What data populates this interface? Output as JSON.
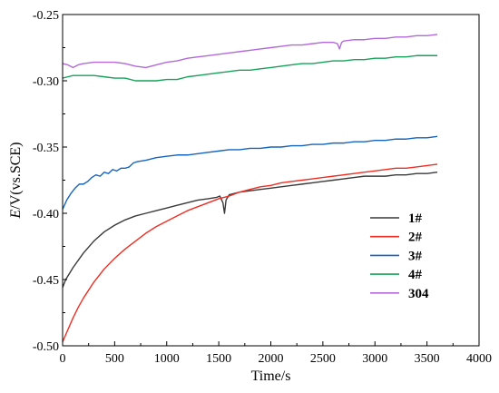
{
  "chart_data": {
    "type": "line",
    "title": "",
    "xlabel": "Time/s",
    "ylabel_italic": "E",
    "ylabel_rest": "/V(vs.SCE)",
    "xlim": [
      0,
      4000
    ],
    "ylim": [
      -0.5,
      -0.25
    ],
    "x_ticks": [
      0,
      500,
      1000,
      1500,
      2000,
      2500,
      3000,
      3500,
      4000
    ],
    "y_ticks": [
      -0.5,
      -0.45,
      -0.4,
      -0.35,
      -0.3,
      -0.25
    ],
    "y_tick_labels": [
      "-0.50",
      "-0.45",
      "-0.40",
      "-0.35",
      "-0.30",
      "-0.25"
    ],
    "grid": false,
    "legend_position": "lower-right",
    "series": [
      {
        "name": "1#",
        "color": "#3a3a3a",
        "points": [
          [
            0,
            -0.456
          ],
          [
            30,
            -0.45
          ],
          [
            100,
            -0.441
          ],
          [
            200,
            -0.43
          ],
          [
            300,
            -0.421
          ],
          [
            400,
            -0.414
          ],
          [
            500,
            -0.409
          ],
          [
            600,
            -0.405
          ],
          [
            700,
            -0.402
          ],
          [
            800,
            -0.4
          ],
          [
            900,
            -0.398
          ],
          [
            1000,
            -0.396
          ],
          [
            1100,
            -0.394
          ],
          [
            1200,
            -0.392
          ],
          [
            1300,
            -0.39
          ],
          [
            1400,
            -0.389
          ],
          [
            1480,
            -0.388
          ],
          [
            1510,
            -0.387
          ],
          [
            1540,
            -0.392
          ],
          [
            1555,
            -0.4
          ],
          [
            1570,
            -0.39
          ],
          [
            1600,
            -0.386
          ],
          [
            1700,
            -0.384
          ],
          [
            1800,
            -0.383
          ],
          [
            1900,
            -0.382
          ],
          [
            2000,
            -0.381
          ],
          [
            2100,
            -0.38
          ],
          [
            2200,
            -0.379
          ],
          [
            2300,
            -0.378
          ],
          [
            2400,
            -0.377
          ],
          [
            2500,
            -0.376
          ],
          [
            2600,
            -0.375
          ],
          [
            2700,
            -0.374
          ],
          [
            2800,
            -0.373
          ],
          [
            2900,
            -0.372
          ],
          [
            3000,
            -0.372
          ],
          [
            3100,
            -0.372
          ],
          [
            3200,
            -0.371
          ],
          [
            3300,
            -0.371
          ],
          [
            3400,
            -0.37
          ],
          [
            3500,
            -0.37
          ],
          [
            3600,
            -0.369
          ]
        ]
      },
      {
        "name": "2#",
        "color": "#ee2e24",
        "points": [
          [
            0,
            -0.497
          ],
          [
            50,
            -0.488
          ],
          [
            100,
            -0.479
          ],
          [
            150,
            -0.471
          ],
          [
            200,
            -0.464
          ],
          [
            300,
            -0.452
          ],
          [
            400,
            -0.442
          ],
          [
            500,
            -0.434
          ],
          [
            600,
            -0.427
          ],
          [
            700,
            -0.421
          ],
          [
            800,
            -0.415
          ],
          [
            900,
            -0.41
          ],
          [
            1000,
            -0.406
          ],
          [
            1100,
            -0.402
          ],
          [
            1200,
            -0.398
          ],
          [
            1300,
            -0.395
          ],
          [
            1400,
            -0.392
          ],
          [
            1500,
            -0.389
          ],
          [
            1600,
            -0.387
          ],
          [
            1700,
            -0.384
          ],
          [
            1800,
            -0.382
          ],
          [
            1900,
            -0.38
          ],
          [
            2000,
            -0.379
          ],
          [
            2100,
            -0.377
          ],
          [
            2200,
            -0.376
          ],
          [
            2300,
            -0.375
          ],
          [
            2400,
            -0.374
          ],
          [
            2500,
            -0.373
          ],
          [
            2600,
            -0.372
          ],
          [
            2700,
            -0.371
          ],
          [
            2800,
            -0.37
          ],
          [
            2900,
            -0.369
          ],
          [
            3000,
            -0.368
          ],
          [
            3100,
            -0.367
          ],
          [
            3200,
            -0.366
          ],
          [
            3300,
            -0.366
          ],
          [
            3400,
            -0.365
          ],
          [
            3500,
            -0.364
          ],
          [
            3600,
            -0.363
          ]
        ]
      },
      {
        "name": "3#",
        "color": "#1565c0",
        "points": [
          [
            0,
            -0.397
          ],
          [
            40,
            -0.39
          ],
          [
            80,
            -0.385
          ],
          [
            120,
            -0.381
          ],
          [
            160,
            -0.378
          ],
          [
            200,
            -0.378
          ],
          [
            240,
            -0.376
          ],
          [
            280,
            -0.373
          ],
          [
            320,
            -0.371
          ],
          [
            360,
            -0.372
          ],
          [
            400,
            -0.369
          ],
          [
            440,
            -0.37
          ],
          [
            480,
            -0.367
          ],
          [
            520,
            -0.368
          ],
          [
            560,
            -0.366
          ],
          [
            600,
            -0.366
          ],
          [
            640,
            -0.365
          ],
          [
            680,
            -0.362
          ],
          [
            720,
            -0.361
          ],
          [
            800,
            -0.36
          ],
          [
            900,
            -0.358
          ],
          [
            1000,
            -0.357
          ],
          [
            1100,
            -0.356
          ],
          [
            1200,
            -0.356
          ],
          [
            1300,
            -0.355
          ],
          [
            1400,
            -0.354
          ],
          [
            1500,
            -0.353
          ],
          [
            1600,
            -0.352
          ],
          [
            1700,
            -0.352
          ],
          [
            1800,
            -0.351
          ],
          [
            1900,
            -0.351
          ],
          [
            2000,
            -0.35
          ],
          [
            2100,
            -0.35
          ],
          [
            2200,
            -0.349
          ],
          [
            2300,
            -0.349
          ],
          [
            2400,
            -0.348
          ],
          [
            2500,
            -0.348
          ],
          [
            2600,
            -0.347
          ],
          [
            2700,
            -0.347
          ],
          [
            2800,
            -0.346
          ],
          [
            2900,
            -0.346
          ],
          [
            3000,
            -0.345
          ],
          [
            3100,
            -0.345
          ],
          [
            3200,
            -0.344
          ],
          [
            3300,
            -0.344
          ],
          [
            3400,
            -0.343
          ],
          [
            3500,
            -0.343
          ],
          [
            3600,
            -0.342
          ]
        ]
      },
      {
        "name": "4#",
        "color": "#17a15a",
        "points": [
          [
            0,
            -0.298
          ],
          [
            50,
            -0.297
          ],
          [
            100,
            -0.296
          ],
          [
            200,
            -0.296
          ],
          [
            300,
            -0.296
          ],
          [
            400,
            -0.297
          ],
          [
            500,
            -0.298
          ],
          [
            600,
            -0.298
          ],
          [
            700,
            -0.3
          ],
          [
            800,
            -0.3
          ],
          [
            900,
            -0.3
          ],
          [
            1000,
            -0.299
          ],
          [
            1100,
            -0.299
          ],
          [
            1200,
            -0.297
          ],
          [
            1300,
            -0.296
          ],
          [
            1400,
            -0.295
          ],
          [
            1500,
            -0.294
          ],
          [
            1600,
            -0.293
          ],
          [
            1700,
            -0.292
          ],
          [
            1800,
            -0.292
          ],
          [
            1900,
            -0.291
          ],
          [
            2000,
            -0.29
          ],
          [
            2100,
            -0.289
          ],
          [
            2200,
            -0.288
          ],
          [
            2300,
            -0.287
          ],
          [
            2400,
            -0.287
          ],
          [
            2500,
            -0.286
          ],
          [
            2600,
            -0.285
          ],
          [
            2700,
            -0.285
          ],
          [
            2800,
            -0.284
          ],
          [
            2900,
            -0.284
          ],
          [
            3000,
            -0.283
          ],
          [
            3100,
            -0.283
          ],
          [
            3200,
            -0.282
          ],
          [
            3300,
            -0.282
          ],
          [
            3400,
            -0.281
          ],
          [
            3500,
            -0.281
          ],
          [
            3600,
            -0.281
          ]
        ]
      },
      {
        "name": "304",
        "color": "#b36ad8",
        "points": [
          [
            0,
            -0.287
          ],
          [
            50,
            -0.288
          ],
          [
            100,
            -0.29
          ],
          [
            150,
            -0.288
          ],
          [
            200,
            -0.287
          ],
          [
            300,
            -0.286
          ],
          [
            400,
            -0.286
          ],
          [
            500,
            -0.286
          ],
          [
            600,
            -0.287
          ],
          [
            700,
            -0.289
          ],
          [
            800,
            -0.29
          ],
          [
            900,
            -0.288
          ],
          [
            1000,
            -0.286
          ],
          [
            1100,
            -0.285
          ],
          [
            1200,
            -0.283
          ],
          [
            1300,
            -0.282
          ],
          [
            1400,
            -0.281
          ],
          [
            1500,
            -0.28
          ],
          [
            1600,
            -0.279
          ],
          [
            1700,
            -0.278
          ],
          [
            1800,
            -0.277
          ],
          [
            1900,
            -0.276
          ],
          [
            2000,
            -0.275
          ],
          [
            2100,
            -0.274
          ],
          [
            2200,
            -0.273
          ],
          [
            2300,
            -0.273
          ],
          [
            2400,
            -0.272
          ],
          [
            2500,
            -0.271
          ],
          [
            2600,
            -0.271
          ],
          [
            2640,
            -0.272
          ],
          [
            2660,
            -0.276
          ],
          [
            2680,
            -0.271
          ],
          [
            2700,
            -0.27
          ],
          [
            2800,
            -0.269
          ],
          [
            2900,
            -0.269
          ],
          [
            3000,
            -0.268
          ],
          [
            3100,
            -0.268
          ],
          [
            3200,
            -0.267
          ],
          [
            3300,
            -0.267
          ],
          [
            3400,
            -0.266
          ],
          [
            3500,
            -0.266
          ],
          [
            3600,
            -0.265
          ]
        ]
      }
    ]
  }
}
